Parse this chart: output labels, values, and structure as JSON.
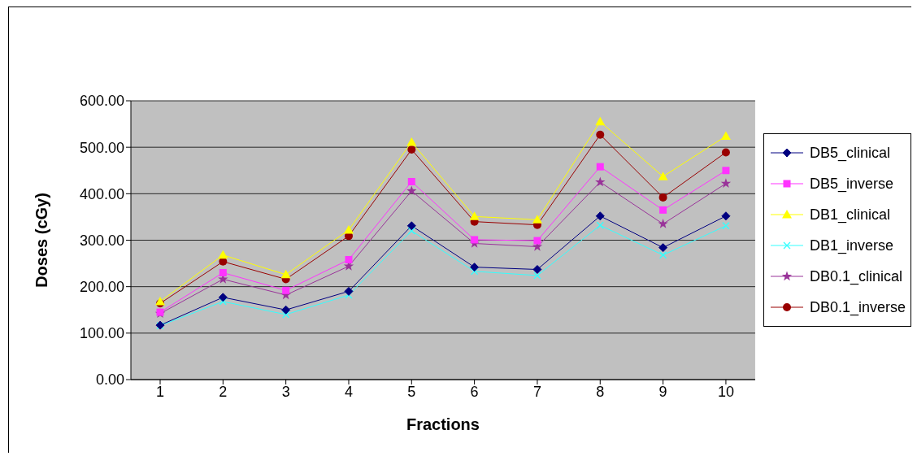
{
  "chart_data": {
    "type": "line",
    "xlabel": "Fractions",
    "ylabel": "Doses (cGy)",
    "categories": [
      "1",
      "2",
      "3",
      "4",
      "5",
      "6",
      "7",
      "8",
      "9",
      "10"
    ],
    "series": [
      {
        "name": "DB5_clinical",
        "color": "#000080",
        "marker": "diamond",
        "values": [
          117,
          177,
          150,
          190,
          331,
          242,
          237,
          352,
          284,
          352
        ]
      },
      {
        "name": "DB5_inverse",
        "color": "#ff33ff",
        "marker": "square",
        "values": [
          145,
          230,
          192,
          258,
          426,
          301,
          299,
          458,
          365,
          450
        ]
      },
      {
        "name": "DB1_clinical",
        "color": "#ffff00",
        "marker": "triangle",
        "values": [
          168,
          268,
          226,
          322,
          511,
          351,
          344,
          555,
          437,
          524
        ]
      },
      {
        "name": "DB1_inverse",
        "color": "#33ffff",
        "marker": "cross",
        "values": [
          116,
          168,
          140,
          182,
          320,
          233,
          224,
          332,
          268,
          331
        ]
      },
      {
        "name": "DB0.1_clinical",
        "color": "#993399",
        "marker": "star",
        "values": [
          142,
          216,
          182,
          244,
          406,
          293,
          286,
          425,
          335,
          422
        ]
      },
      {
        "name": "DB0.1_inverse",
        "color": "#990000",
        "marker": "circle",
        "values": [
          164,
          254,
          216,
          309,
          495,
          340,
          333,
          527,
          392,
          489
        ]
      }
    ],
    "ylim": [
      0,
      600
    ],
    "yticks": [
      {
        "value": 0,
        "label": "0.00"
      },
      {
        "value": 100,
        "label": "100.00"
      },
      {
        "value": 200,
        "label": "200.00"
      },
      {
        "value": 300,
        "label": "300.00"
      },
      {
        "value": 400,
        "label": "400.00"
      },
      {
        "value": 500,
        "label": "500.00"
      },
      {
        "value": 600,
        "label": "600.00"
      }
    ],
    "grid": "y",
    "legend": "right",
    "line_style": "solid"
  }
}
